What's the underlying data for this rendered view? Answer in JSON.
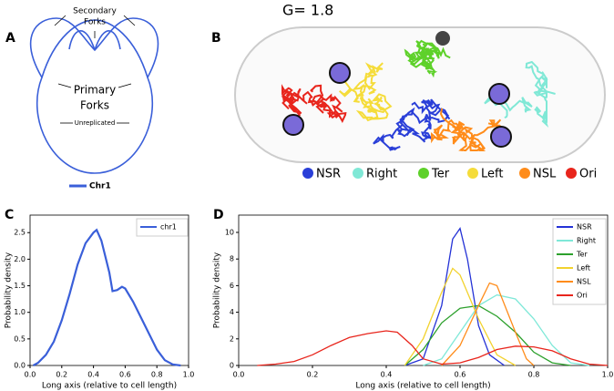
{
  "panel_a": {
    "label": "A",
    "secondary_forks": [
      "Secondary",
      "Forks"
    ],
    "primary_forks": [
      "Primary",
      "Forks"
    ],
    "unreplicated": "Unreplicated",
    "legend": "Chr1",
    "color": "#3a5fd9"
  },
  "panel_b": {
    "label": "B",
    "title": "G= 1.8",
    "legend": [
      {
        "name": "NSR",
        "color": "#2a3fd8"
      },
      {
        "name": "Right",
        "color": "#80e8d6"
      },
      {
        "name": "Ter",
        "color": "#5ed12a"
      },
      {
        "name": "Left",
        "color": "#f5dc3a"
      },
      {
        "name": "NSL",
        "color": "#ff8c1a"
      },
      {
        "name": "Ori",
        "color": "#e8251c"
      }
    ]
  },
  "chart_data": [
    {
      "type": "line",
      "panel_label": "C",
      "xlabel": "Long axis (relative to cell length)",
      "ylabel": "Probability density",
      "legend": "upper right",
      "xlim": [
        0,
        1
      ],
      "ylim": [
        0,
        2.83
      ],
      "xticks": [
        {
          "value": 0,
          "label": "0.0"
        },
        {
          "value": 0.2,
          "label": "0.2"
        },
        {
          "value": 0.4,
          "label": "0.4"
        },
        {
          "value": 0.6,
          "label": "0.6"
        },
        {
          "value": 0.8,
          "label": "0.8"
        },
        {
          "value": 1,
          "label": "1.0"
        }
      ],
      "yticks": [
        {
          "value": 0,
          "label": "0.0"
        },
        {
          "value": 0.5,
          "label": "0.5"
        },
        {
          "value": 1,
          "label": "1.0"
        },
        {
          "value": 1.5,
          "label": "1.5"
        },
        {
          "value": 2,
          "label": "2.0"
        },
        {
          "value": 2.5,
          "label": "2.5"
        }
      ],
      "series": [
        {
          "name": "chr1",
          "color": "#3a5fd9",
          "x": [
            0.02,
            0.05,
            0.1,
            0.15,
            0.2,
            0.25,
            0.3,
            0.35,
            0.4,
            0.42,
            0.45,
            0.5,
            0.52,
            0.55,
            0.58,
            0.6,
            0.65,
            0.7,
            0.75,
            0.8,
            0.85,
            0.9,
            0.95
          ],
          "values": [
            0,
            0.05,
            0.2,
            0.45,
            0.85,
            1.35,
            1.9,
            2.3,
            2.5,
            2.55,
            2.35,
            1.75,
            1.4,
            1.42,
            1.48,
            1.45,
            1.2,
            0.9,
            0.6,
            0.3,
            0.1,
            0.02,
            0
          ]
        }
      ]
    },
    {
      "type": "line",
      "panel_label": "D",
      "xlabel": "Long axis (relative to cell length)",
      "ylabel": "Probability density",
      "legend": "upper right",
      "xlim": [
        0,
        1
      ],
      "ylim": [
        0,
        11.3
      ],
      "xticks": [
        {
          "value": 0,
          "label": "0.0"
        },
        {
          "value": 0.2,
          "label": "0.2"
        },
        {
          "value": 0.4,
          "label": "0.4"
        },
        {
          "value": 0.6,
          "label": "0.6"
        },
        {
          "value": 0.8,
          "label": "0.8"
        },
        {
          "value": 1,
          "label": "1.0"
        }
      ],
      "yticks": [
        0,
        2,
        4,
        6,
        8,
        10
      ],
      "series": [
        {
          "name": "NSR",
          "color": "#2432d6",
          "x": [
            0.45,
            0.5,
            0.55,
            0.58,
            0.6,
            0.62,
            0.65,
            0.68,
            0.72
          ],
          "values": [
            0,
            0.5,
            4.5,
            9.5,
            10.3,
            8,
            3,
            0.8,
            0
          ]
        },
        {
          "name": "Right",
          "color": "#7fe8d8",
          "x": [
            0.5,
            0.55,
            0.6,
            0.65,
            0.7,
            0.75,
            0.8,
            0.85,
            0.9,
            0.95
          ],
          "values": [
            0,
            0.5,
            2.5,
            4.5,
            5.3,
            5,
            3.5,
            1.5,
            0.2,
            0
          ]
        },
        {
          "name": "Ter",
          "color": "#2ca02c",
          "x": [
            0.45,
            0.5,
            0.55,
            0.6,
            0.65,
            0.7,
            0.75,
            0.8,
            0.85,
            0.9
          ],
          "values": [
            0,
            1.2,
            3.2,
            4.3,
            4.5,
            3.7,
            2.5,
            1,
            0.2,
            0
          ]
        },
        {
          "name": "Left",
          "color": "#f2d22e",
          "x": [
            0.45,
            0.5,
            0.55,
            0.58,
            0.6,
            0.65,
            0.7,
            0.75
          ],
          "values": [
            0,
            2,
            5.5,
            7.3,
            6.8,
            3.5,
            0.8,
            0
          ]
        },
        {
          "name": "NSL",
          "color": "#ff8c1a",
          "x": [
            0.55,
            0.6,
            0.65,
            0.68,
            0.7,
            0.75,
            0.78,
            0.8
          ],
          "values": [
            0,
            1.5,
            4.5,
            6.2,
            6,
            2.5,
            0.5,
            0
          ]
        },
        {
          "name": "Ori",
          "color": "#e8251c",
          "x": [
            0.05,
            0.1,
            0.15,
            0.2,
            0.25,
            0.3,
            0.35,
            0.4,
            0.43,
            0.47,
            0.5,
            0.55,
            0.6,
            0.65,
            0.7,
            0.75,
            0.8,
            0.85,
            0.9,
            0.95,
            1
          ],
          "values": [
            0,
            0.1,
            0.3,
            0.8,
            1.5,
            2.1,
            2.4,
            2.6,
            2.5,
            1.5,
            0.5,
            0.1,
            0.2,
            0.6,
            1.2,
            1.45,
            1.4,
            1.1,
            0.5,
            0.1,
            0
          ]
        }
      ]
    }
  ]
}
